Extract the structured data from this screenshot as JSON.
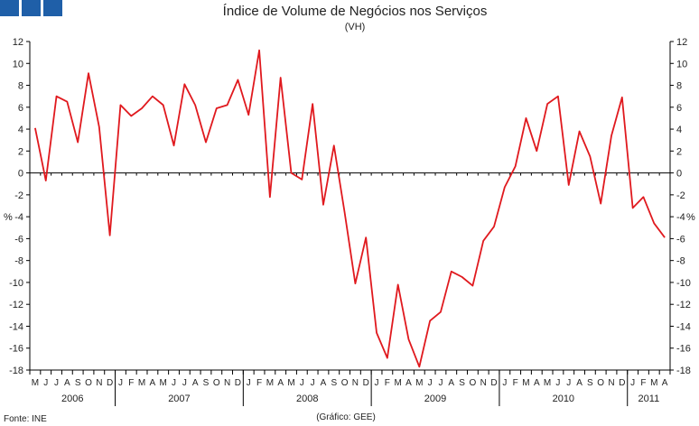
{
  "logo": {
    "color": "#1f5fa8"
  },
  "chart_data": {
    "type": "line",
    "title": "Índice de Volume de Negócios nos Serviços",
    "subtitle": "(VH)",
    "ylabel_left": "%",
    "ylabel_right": "%",
    "source": "Fonte: INE",
    "credit": "(Gráfico: GEE)",
    "ylim": [
      -18,
      12
    ],
    "yticks": [
      12,
      10,
      8,
      6,
      4,
      2,
      0,
      -2,
      -4,
      -6,
      -8,
      -10,
      -12,
      -14,
      -16,
      -18
    ],
    "grid": false,
    "line_color": "#e0191e",
    "months": [
      "M",
      "J",
      "J",
      "A",
      "S",
      "O",
      "N",
      "D",
      "J",
      "F",
      "M",
      "A",
      "M",
      "J",
      "J",
      "A",
      "S",
      "O",
      "N",
      "D",
      "J",
      "F",
      "M",
      "A",
      "M",
      "J",
      "J",
      "A",
      "S",
      "O",
      "N",
      "D",
      "J",
      "F",
      "M",
      "A",
      "M",
      "J",
      "J",
      "A",
      "S",
      "O",
      "N",
      "D",
      "J",
      "F",
      "M",
      "A",
      "M",
      "J",
      "J",
      "A",
      "S",
      "O",
      "N",
      "D",
      "J",
      "F",
      "M",
      "A"
    ],
    "years": [
      {
        "label": "2006",
        "start": 0,
        "count": 8
      },
      {
        "label": "2007",
        "start": 8,
        "count": 12
      },
      {
        "label": "2008",
        "start": 20,
        "count": 12
      },
      {
        "label": "2009",
        "start": 32,
        "count": 12
      },
      {
        "label": "2010",
        "start": 44,
        "count": 12
      },
      {
        "label": "2011",
        "start": 56,
        "count": 4
      }
    ],
    "values": [
      4.1,
      -0.7,
      7.0,
      6.5,
      2.8,
      9.1,
      4.2,
      -5.7,
      6.2,
      5.2,
      5.9,
      7.0,
      6.2,
      2.5,
      8.1,
      6.2,
      2.8,
      5.9,
      6.2,
      8.5,
      5.3,
      11.2,
      -2.2,
      8.7,
      0.0,
      -0.6,
      6.3,
      -2.9,
      2.5,
      -3.6,
      -10.1,
      -5.9,
      -14.6,
      -16.9,
      -10.2,
      -15.2,
      -17.7,
      -13.5,
      -12.7,
      -9.0,
      -9.5,
      -10.3,
      -6.2,
      -4.9,
      -1.3,
      0.6,
      5.0,
      2.0,
      6.3,
      7.0,
      -1.1,
      3.8,
      1.5,
      -2.8,
      3.4,
      6.9,
      -3.2,
      -2.2,
      -4.6,
      -5.9
    ]
  }
}
